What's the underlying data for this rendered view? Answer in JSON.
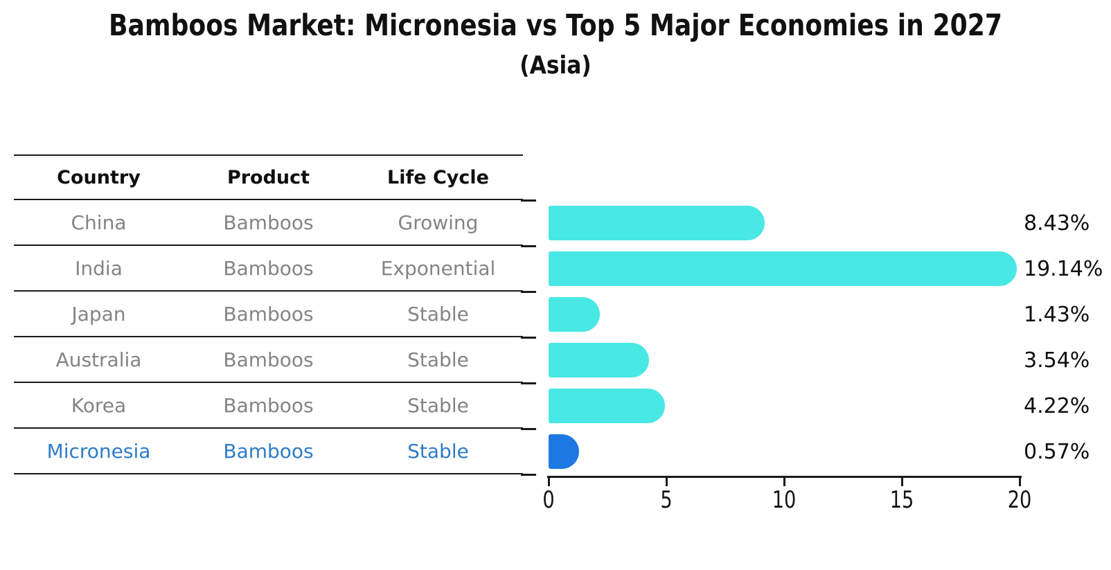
{
  "page": {
    "background": "#ffffff"
  },
  "chart_data": {
    "type": "bar",
    "orientation": "horizontal",
    "title": "Bamboos Market: Micronesia vs Top 5 Major Economies in 2027",
    "subtitle": "(Asia)",
    "categories": [
      "China",
      "India",
      "Japan",
      "Australia",
      "Korea",
      "Micronesia"
    ],
    "values": [
      8.43,
      19.14,
      1.43,
      3.54,
      4.22,
      0.57
    ],
    "value_labels": [
      "8.43%",
      "19.14%",
      "1.43%",
      "3.54%",
      "4.22%",
      "0.57%"
    ],
    "xlim": [
      0,
      20
    ],
    "x_ticks": [
      0,
      5,
      10,
      15,
      20
    ],
    "grid": false,
    "legend": "none",
    "bar_color": "#48E8E4",
    "highlight_color": "#1E78E3",
    "highlight_index": 5,
    "axis_color": "#1a1a1a"
  },
  "table": {
    "headers": [
      "Country",
      "Product",
      "Life Cycle"
    ],
    "rows": [
      {
        "country": "China",
        "product": "Bamboos",
        "life_cycle": "Growing",
        "highlight": false
      },
      {
        "country": "India",
        "product": "Bamboos",
        "life_cycle": "Exponential",
        "highlight": false
      },
      {
        "country": "Japan",
        "product": "Bamboos",
        "life_cycle": "Stable",
        "highlight": false
      },
      {
        "country": "Australia",
        "product": "Bamboos",
        "life_cycle": "Stable",
        "highlight": false
      },
      {
        "country": "Korea",
        "product": "Bamboos",
        "life_cycle": "Stable",
        "highlight": false
      },
      {
        "country": "Micronesia",
        "product": "Bamboos",
        "life_cycle": "Stable",
        "highlight": true
      }
    ],
    "text_color": "#848484",
    "highlight_text_color": "#2E7CC6"
  }
}
